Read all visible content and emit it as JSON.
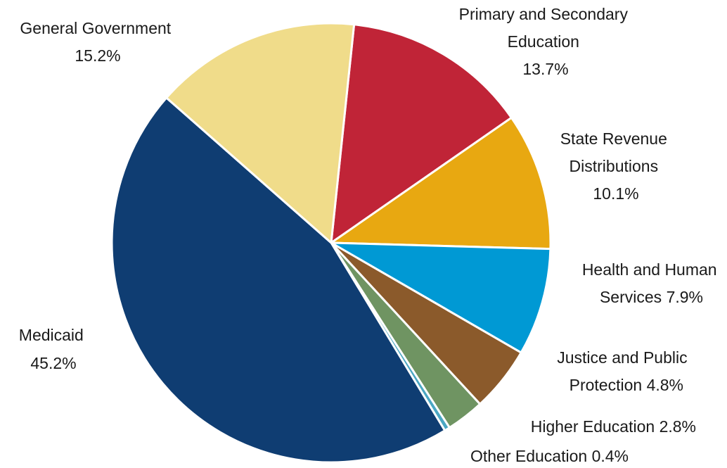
{
  "chart_data": {
    "type": "pie",
    "title": "",
    "slices": [
      {
        "label": "Primary and Secondary Education",
        "label_lines": [
          "Primary and Secondary",
          "Education"
        ],
        "pct_text": "13.7%",
        "value": 13.7,
        "color": "#C02437"
      },
      {
        "label": "State Revenue Distributions",
        "label_lines": [
          "State Revenue",
          "Distributions"
        ],
        "pct_text": "10.1%",
        "value": 10.1,
        "color": "#E8A811"
      },
      {
        "label": "Health and Human Services",
        "label_lines": [
          "Health and Human",
          "Services"
        ],
        "pct_text": "7.9%",
        "value": 7.9,
        "color": "#0099D4"
      },
      {
        "label": "Justice and Public Protection",
        "label_lines": [
          "Justice and Public",
          "Protection"
        ],
        "pct_text": "4.8%",
        "value": 4.8,
        "color": "#8B5A2B"
      },
      {
        "label": "Higher Education",
        "label_lines": [
          "Higher Education"
        ],
        "pct_text": "2.8%",
        "value": 2.8,
        "color": "#6F9462"
      },
      {
        "label": "Other Education",
        "label_lines": [
          "Other Education"
        ],
        "pct_text": "0.4%",
        "value": 0.4,
        "color": "#4BA7C3"
      },
      {
        "label": "Medicaid",
        "label_lines": [
          "Medicaid"
        ],
        "pct_text": "45.2%",
        "value": 45.2,
        "color": "#0F3D72"
      },
      {
        "label": "General Government",
        "label_lines": [
          "General Government"
        ],
        "pct_text": "15.2%",
        "value": 15.2,
        "color": "#F0DC8A"
      }
    ]
  }
}
